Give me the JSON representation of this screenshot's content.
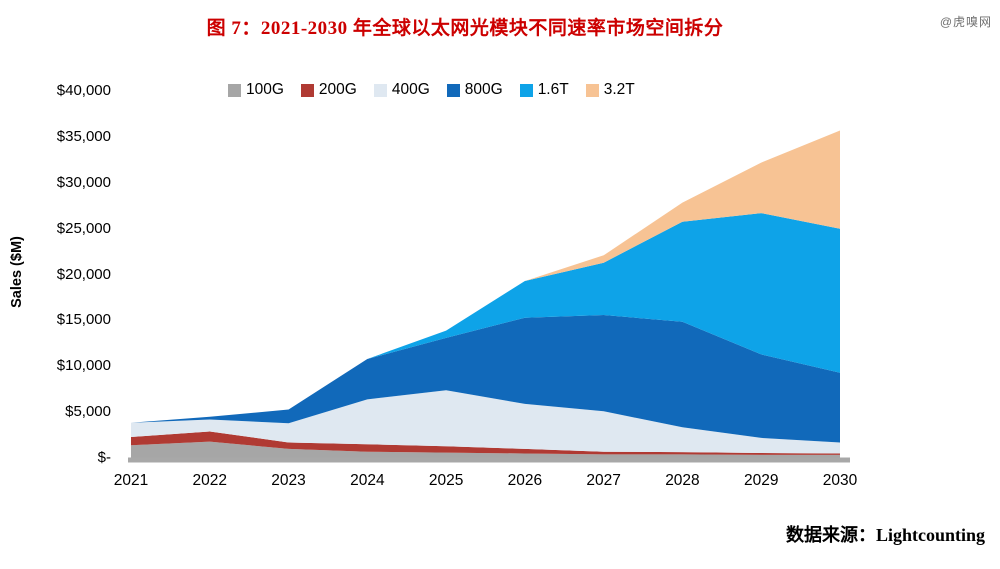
{
  "page": {
    "title": "图 7：2021-2030 年全球以太网光模块不同速率市场空间拆分",
    "title_color": "#cc0000",
    "watermark": "@虎嗅网",
    "source": "数据来源：Lightcounting"
  },
  "chart_data": {
    "type": "area",
    "stacked": true,
    "title": "图 7：2021-2030 年全球以太网光模块不同速率市场空间拆分",
    "x": [
      2021,
      2022,
      2023,
      2024,
      2025,
      2026,
      2027,
      2028,
      2029,
      2030
    ],
    "series": [
      {
        "name": "100G",
        "color": "#a6a6a6",
        "values": [
          1500,
          1900,
          1100,
          800,
          700,
          600,
          500,
          500,
          450,
          450
        ]
      },
      {
        "name": "200G",
        "color": "#b03a33",
        "values": [
          900,
          1100,
          700,
          800,
          700,
          500,
          300,
          250,
          200,
          150
        ]
      },
      {
        "name": "400G",
        "color": "#dfe8f1",
        "values": [
          1550,
          1300,
          2100,
          4900,
          6100,
          4900,
          4400,
          2700,
          1650,
          1200
        ]
      },
      {
        "name": "800G",
        "color": "#1169ba",
        "values": [
          0,
          300,
          1500,
          4400,
          5700,
          9400,
          10500,
          11500,
          9100,
          7600
        ]
      },
      {
        "name": "1.6T",
        "color": "#0ea3e8",
        "values": [
          0,
          0,
          0,
          0,
          800,
          4000,
          5700,
          10900,
          15400,
          15700
        ]
      },
      {
        "name": "3.2T",
        "color": "#f7c394",
        "values": [
          0,
          0,
          0,
          0,
          0,
          0,
          800,
          2100,
          5500,
          10700
        ]
      }
    ],
    "totals": [
      3950,
      4600,
      5400,
      10900,
      14000,
      19400,
      22200,
      27950,
      32300,
      35800
    ],
    "xlabel": "",
    "ylabel": "Sales ($M)",
    "ylim": [
      0,
      40000
    ],
    "ytick_step": 5000,
    "ytick_labels": [
      "$-",
      "$5,000",
      "$10,000",
      "$15,000",
      "$20,000",
      "$25,000",
      "$30,000",
      "$35,000",
      "$40,000"
    ],
    "legend_position": "top-center",
    "grid": false,
    "axis_line_color": "#a8a8a8"
  }
}
